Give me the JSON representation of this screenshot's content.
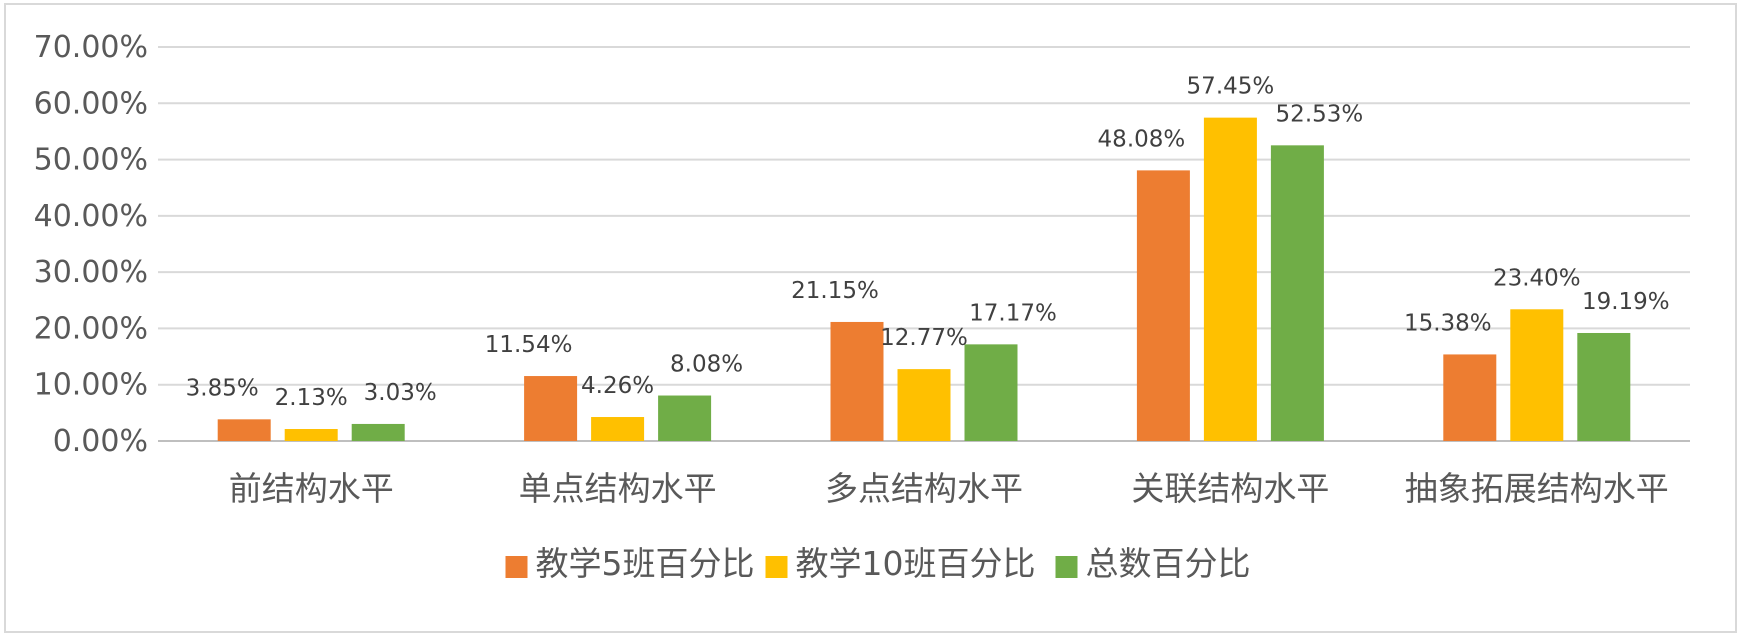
{
  "chart_data": {
    "type": "bar",
    "title": "",
    "xlabel": "",
    "ylabel": "",
    "ylim": [
      0,
      70
    ],
    "y_ticks": [
      "0.00%",
      "10.00%",
      "20.00%",
      "30.00%",
      "40.00%",
      "50.00%",
      "60.00%",
      "70.00%"
    ],
    "grid": true,
    "legend_position": "bottom",
    "categories": [
      "前结构水平",
      "单点结构水平",
      "多点结构水平",
      "关联结构水平",
      "抽象拓展结构水平"
    ],
    "series": [
      {
        "name": "教学5班百分比",
        "color": "#ed7d31",
        "values": [
          3.85,
          11.54,
          21.15,
          48.08,
          15.38
        ],
        "labels": [
          "3.85%",
          "11.54%",
          "21.15%",
          "48.08%",
          "15.38%"
        ]
      },
      {
        "name": "教学10班百分比",
        "color": "#ffc000",
        "values": [
          2.13,
          4.26,
          12.77,
          57.45,
          23.4
        ],
        "labels": [
          "2.13%",
          "4.26%",
          "12.77%",
          "57.45%",
          "23.40%"
        ]
      },
      {
        "name": "总数百分比",
        "color": "#70ad47",
        "values": [
          3.03,
          8.08,
          17.17,
          52.53,
          19.19
        ],
        "labels": [
          "3.03%",
          "8.08%",
          "17.17%",
          "52.53%",
          "19.19%"
        ]
      }
    ]
  }
}
